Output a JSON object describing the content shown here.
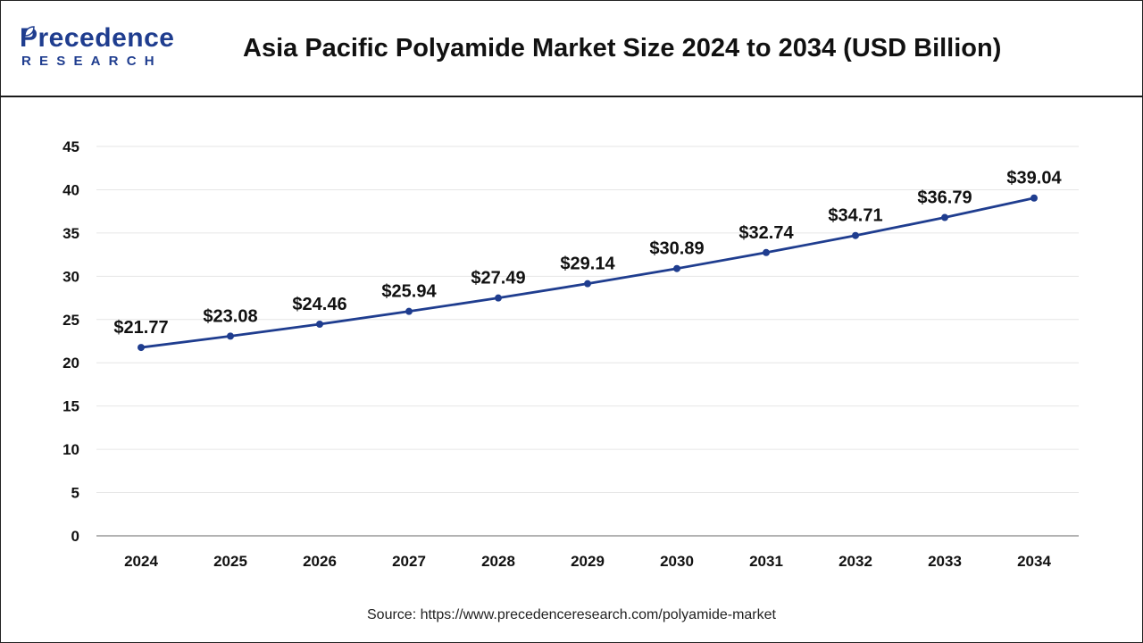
{
  "header": {
    "logo_main": "Precedence",
    "logo_sub": "RESEARCH",
    "title": "Asia Pacific Polyamide Market Size 2024 to 2034 (USD Billion)"
  },
  "footer": {
    "source": "Source: https://www.precedenceresearch.com/polyamide-market"
  },
  "colors": {
    "line": "#1f3d8f",
    "brand": "#1f3d8f",
    "grid": "#e6e6e6"
  },
  "chart_data": {
    "type": "line",
    "x": [
      "2024",
      "2025",
      "2026",
      "2027",
      "2028",
      "2029",
      "2030",
      "2031",
      "2032",
      "2033",
      "2034"
    ],
    "values": [
      21.77,
      23.08,
      24.46,
      25.94,
      27.49,
      29.14,
      30.89,
      32.74,
      34.71,
      36.79,
      39.04
    ],
    "data_labels": [
      "$21.77",
      "$23.08",
      "$24.46",
      "$25.94",
      "$27.49",
      "$29.14",
      "$30.89",
      "$32.74",
      "$34.71",
      "$36.79",
      "$39.04"
    ],
    "yticks": [
      0,
      5,
      10,
      15,
      20,
      25,
      30,
      35,
      40,
      45
    ],
    "ylim": [
      0,
      45
    ],
    "grid": true,
    "legend": "none"
  }
}
